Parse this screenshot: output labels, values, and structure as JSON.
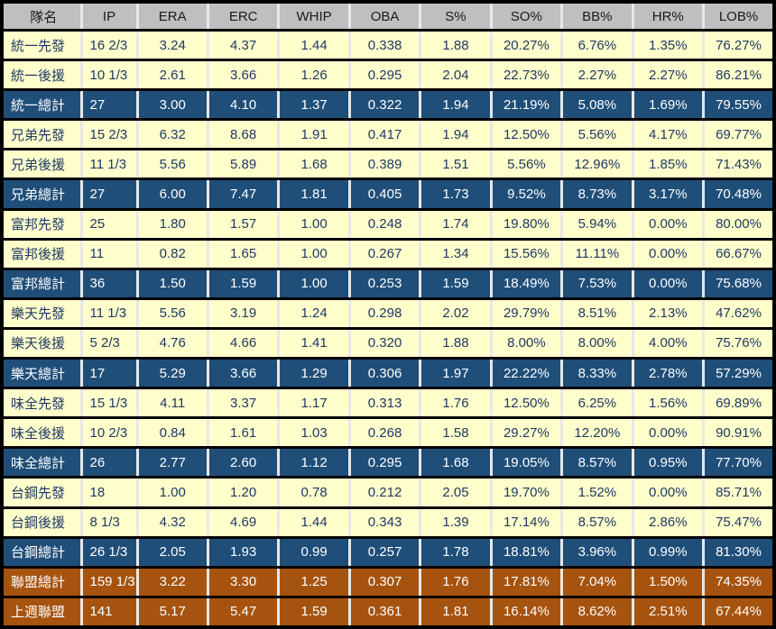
{
  "colors": {
    "frame": "#000000",
    "row_separator": "#000000",
    "col_separator": "#e8e8e8",
    "header_bg": "#bfbfbf",
    "header_text": "#1a1a1a",
    "split_bg": "#ffffcc",
    "dark_text": "#1f3864",
    "team_total_bg": "#1f4e79",
    "league_bg": "#a5530f",
    "light_text": "#ffffff"
  },
  "chart_data": {
    "type": "table",
    "title": "",
    "columns": [
      "隊名",
      "IP",
      "ERA",
      "ERC",
      "WHIP",
      "OBA",
      "S%",
      "SO%",
      "BB%",
      "HR%",
      "LOB%"
    ],
    "rows": [
      {
        "type": "split",
        "cells": [
          "統一先發",
          "16 2/3",
          "3.24",
          "4.37",
          "1.44",
          "0.338",
          "1.88",
          "20.27%",
          "6.76%",
          "1.35%",
          "76.27%"
        ]
      },
      {
        "type": "split",
        "cells": [
          "統一後援",
          "10 1/3",
          "2.61",
          "3.66",
          "1.26",
          "0.295",
          "2.04",
          "22.73%",
          "2.27%",
          "2.27%",
          "86.21%"
        ]
      },
      {
        "type": "team-total",
        "cells": [
          "統一總計",
          "27",
          "3.00",
          "4.10",
          "1.37",
          "0.322",
          "1.94",
          "21.19%",
          "5.08%",
          "1.69%",
          "79.55%"
        ]
      },
      {
        "type": "split",
        "cells": [
          "兄弟先發",
          "15 2/3",
          "6.32",
          "8.68",
          "1.91",
          "0.417",
          "1.94",
          "12.50%",
          "5.56%",
          "4.17%",
          "69.77%"
        ]
      },
      {
        "type": "split",
        "cells": [
          "兄弟後援",
          "11 1/3",
          "5.56",
          "5.89",
          "1.68",
          "0.389",
          "1.51",
          "5.56%",
          "12.96%",
          "1.85%",
          "71.43%"
        ]
      },
      {
        "type": "team-total",
        "cells": [
          "兄弟總計",
          "27",
          "6.00",
          "7.47",
          "1.81",
          "0.405",
          "1.73",
          "9.52%",
          "8.73%",
          "3.17%",
          "70.48%"
        ]
      },
      {
        "type": "split",
        "cells": [
          "富邦先發",
          "25",
          "1.80",
          "1.57",
          "1.00",
          "0.248",
          "1.74",
          "19.80%",
          "5.94%",
          "0.00%",
          "80.00%"
        ]
      },
      {
        "type": "split",
        "cells": [
          "富邦後援",
          "11",
          "0.82",
          "1.65",
          "1.00",
          "0.267",
          "1.34",
          "15.56%",
          "11.11%",
          "0.00%",
          "66.67%"
        ]
      },
      {
        "type": "team-total",
        "cells": [
          "富邦總計",
          "36",
          "1.50",
          "1.59",
          "1.00",
          "0.253",
          "1.59",
          "18.49%",
          "7.53%",
          "0.00%",
          "75.68%"
        ]
      },
      {
        "type": "split",
        "cells": [
          "樂天先發",
          "11 1/3",
          "5.56",
          "3.19",
          "1.24",
          "0.298",
          "2.02",
          "29.79%",
          "8.51%",
          "2.13%",
          "47.62%"
        ]
      },
      {
        "type": "split",
        "cells": [
          "樂天後援",
          "5 2/3",
          "4.76",
          "4.66",
          "1.41",
          "0.320",
          "1.88",
          "8.00%",
          "8.00%",
          "4.00%",
          "75.76%"
        ]
      },
      {
        "type": "team-total",
        "cells": [
          "樂天總計",
          "17",
          "5.29",
          "3.66",
          "1.29",
          "0.306",
          "1.97",
          "22.22%",
          "8.33%",
          "2.78%",
          "57.29%"
        ]
      },
      {
        "type": "split",
        "cells": [
          "味全先發",
          "15 1/3",
          "4.11",
          "3.37",
          "1.17",
          "0.313",
          "1.76",
          "12.50%",
          "6.25%",
          "1.56%",
          "69.89%"
        ]
      },
      {
        "type": "split",
        "cells": [
          "味全後援",
          "10 2/3",
          "0.84",
          "1.61",
          "1.03",
          "0.268",
          "1.58",
          "29.27%",
          "12.20%",
          "0.00%",
          "90.91%"
        ]
      },
      {
        "type": "team-total",
        "cells": [
          "味全總計",
          "26",
          "2.77",
          "2.60",
          "1.12",
          "0.295",
          "1.68",
          "19.05%",
          "8.57%",
          "0.95%",
          "77.70%"
        ]
      },
      {
        "type": "split",
        "cells": [
          "台鋼先發",
          "18",
          "1.00",
          "1.20",
          "0.78",
          "0.212",
          "2.05",
          "19.70%",
          "1.52%",
          "0.00%",
          "85.71%"
        ]
      },
      {
        "type": "split",
        "cells": [
          "台鋼後援",
          "8 1/3",
          "4.32",
          "4.69",
          "1.44",
          "0.343",
          "1.39",
          "17.14%",
          "8.57%",
          "2.86%",
          "75.47%"
        ]
      },
      {
        "type": "team-total",
        "cells": [
          "台鋼總計",
          "26 1/3",
          "2.05",
          "1.93",
          "0.99",
          "0.257",
          "1.78",
          "18.81%",
          "3.96%",
          "0.99%",
          "81.30%"
        ]
      },
      {
        "type": "league",
        "cells": [
          "聯盟總計",
          "159 1/3",
          "3.22",
          "3.30",
          "1.25",
          "0.307",
          "1.76",
          "17.81%",
          "7.04%",
          "1.50%",
          "74.35%"
        ]
      },
      {
        "type": "league",
        "cells": [
          "上週聯盟",
          "141",
          "5.17",
          "5.47",
          "1.59",
          "0.361",
          "1.81",
          "16.14%",
          "8.62%",
          "2.51%",
          "67.44%"
        ]
      }
    ]
  }
}
